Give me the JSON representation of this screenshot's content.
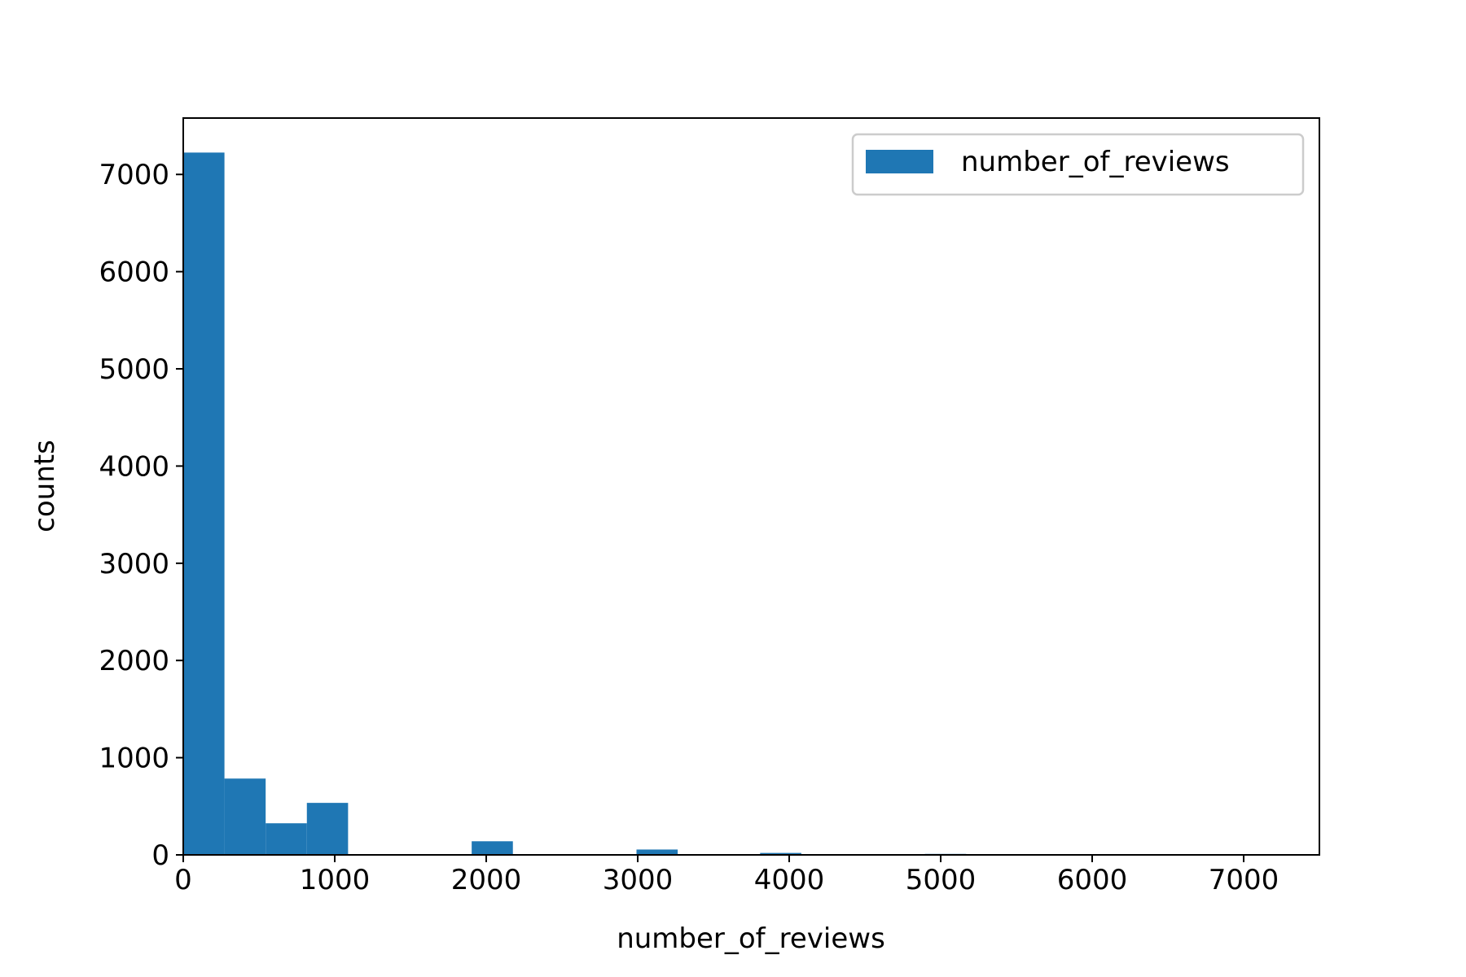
{
  "chart_data": {
    "type": "bar",
    "title": "",
    "xlabel": "number_of_reviews",
    "ylabel": "counts",
    "xlim": [
      0,
      7500
    ],
    "ylim": [
      0,
      7580
    ],
    "bin_width": 272,
    "x_ticks": [
      0,
      1000,
      2000,
      3000,
      4000,
      5000,
      6000,
      7000
    ],
    "x_tick_labels": [
      "0",
      "1000",
      "2000",
      "3000",
      "4000",
      "5000",
      "6000",
      "7000"
    ],
    "y_ticks": [
      0,
      1000,
      2000,
      3000,
      4000,
      5000,
      6000,
      7000
    ],
    "y_tick_labels": [
      "0",
      "1000",
      "2000",
      "3000",
      "4000",
      "5000",
      "6000",
      "7000"
    ],
    "bins": [
      {
        "x_start": 0,
        "value": 7225
      },
      {
        "x_start": 272,
        "value": 785
      },
      {
        "x_start": 544,
        "value": 325
      },
      {
        "x_start": 816,
        "value": 535
      },
      {
        "x_start": 1904,
        "value": 140
      },
      {
        "x_start": 2992,
        "value": 55
      },
      {
        "x_start": 3808,
        "value": 20
      },
      {
        "x_start": 4896,
        "value": 10
      },
      {
        "x_start": 5984,
        "value": 8
      }
    ],
    "series": [
      {
        "name": "number_of_reviews",
        "color": "#1f77b4"
      }
    ],
    "legend": {
      "position": "top-right",
      "entries": [
        "number_of_reviews"
      ]
    },
    "grid": false
  }
}
